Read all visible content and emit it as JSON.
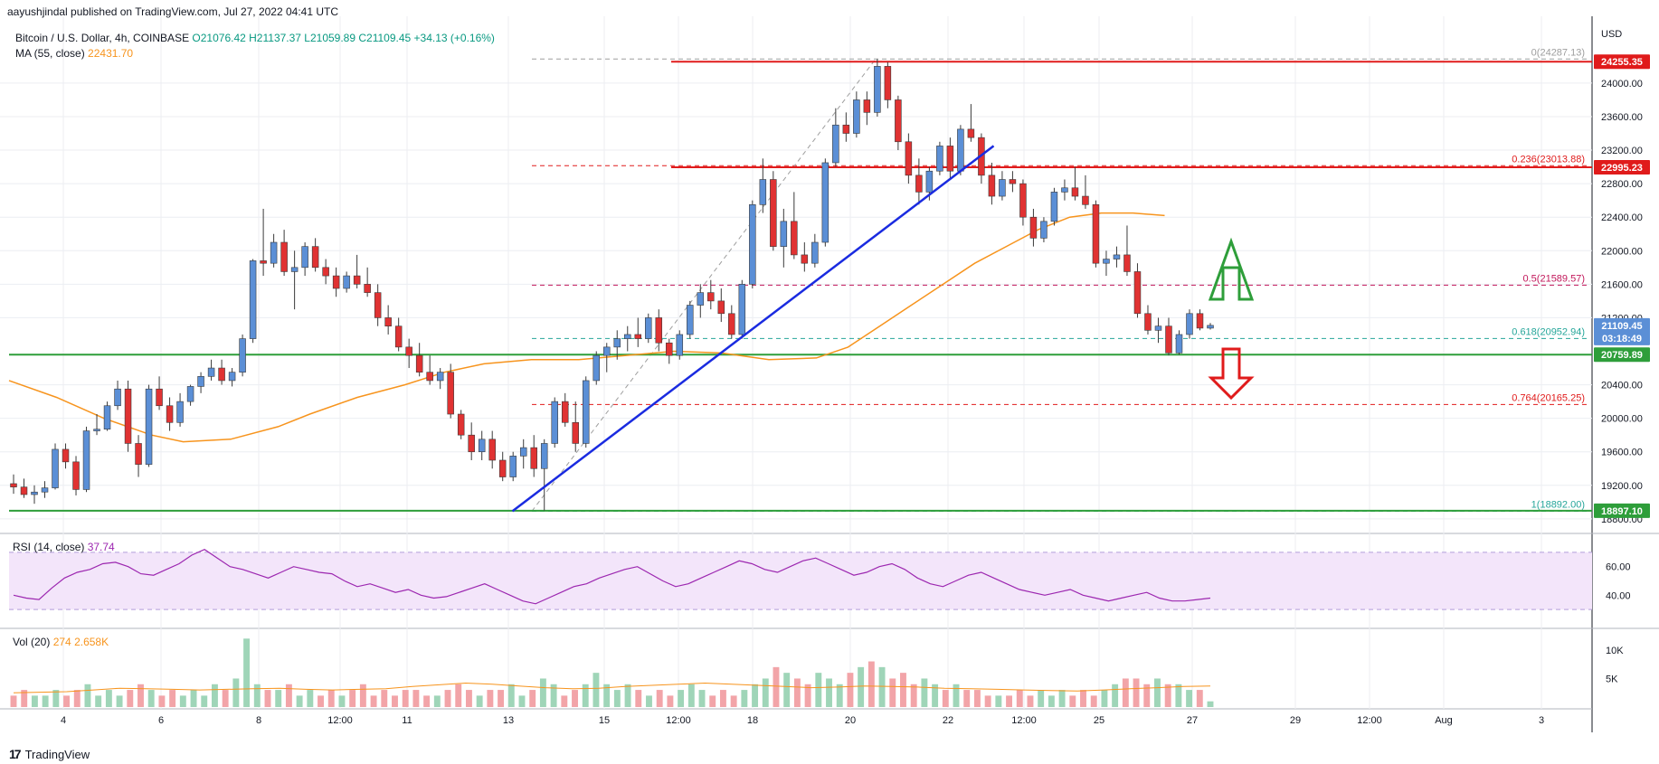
{
  "publisher_line": "aayushjindal published on TradingView.com, Jul 27, 2022 04:41 UTC",
  "symbol_line": "Bitcoin / U.S. Dollar, 4h, COINBASE",
  "ohlc": "O21076.42  H21137.37  L21059.89  C21109.45  +34.13 (+0.16%)",
  "ma_label": "MA (55, close)",
  "ma_value": "22431.70",
  "rsi_label": "RSI (14, close)",
  "rsi_value": "37.74",
  "vol_label": "Vol (20)",
  "vol_value1": "274",
  "vol_value2": "2.658K",
  "currency": "USD",
  "footer_brand": "TradingView",
  "colors": {
    "up": "#5b8fd6",
    "down": "#e03232",
    "ma": "#f7941d",
    "trendline": "#1a2be0",
    "support": "#2e9e3a",
    "resistance": "#e01b1b",
    "fib": "#c2185b",
    "rsi": "#9c27b0",
    "vol_up": "#9fd5b8",
    "vol_down": "#f2a4a8"
  },
  "chart_data": {
    "type": "candlestick",
    "ylim": [
      18680,
      24560
    ],
    "y_ticks": [
      "24000.00",
      "23600.00",
      "23200.00",
      "22800.00",
      "22400.00",
      "22000.00",
      "21600.00",
      "21200.00",
      "20400.00",
      "20000.00",
      "19600.00",
      "19200.00",
      "18800.00"
    ],
    "x_ticks": [
      "4",
      "6",
      "8",
      "12:00",
      "11",
      "13",
      "15",
      "12:00",
      "18",
      "20",
      "22",
      "12:00",
      "25",
      "27",
      "29",
      "12:00",
      "Aug",
      "3"
    ],
    "price_tags": [
      {
        "label": "24255.35",
        "value": 24255.35,
        "color": "#e01b1b"
      },
      {
        "label": "22995.23",
        "value": 22995.23,
        "color": "#e01b1b"
      },
      {
        "label": "21109.45",
        "value": 21109.45,
        "color": "#5b8fd6"
      },
      {
        "label": "03:18:49",
        "value": 20950,
        "color": "#5b8fd6"
      },
      {
        "label": "20759.89",
        "value": 20759.89,
        "color": "#2e9e3a"
      },
      {
        "label": "18897.10",
        "value": 18897.1,
        "color": "#2e9e3a"
      }
    ],
    "fib_levels": [
      {
        "label": "0(24287.13)",
        "value": 24287.13,
        "color": "#9e9e9e"
      },
      {
        "label": "0.236(23013.88)",
        "value": 23013.88,
        "color": "#e01b1b"
      },
      {
        "label": "0.5(21589.57)",
        "value": 21589.57,
        "color": "#c2185b"
      },
      {
        "label": "0.618(20952.94)",
        "value": 20952.94,
        "color": "#26a69a"
      },
      {
        "label": "0.764(20165.25)",
        "value": 20165.25,
        "color": "#e01b1b"
      },
      {
        "label": "1(18892.00)",
        "value": 18892.0,
        "color": "#26a69a"
      }
    ],
    "horizontal_lines": [
      {
        "value": 24255.35,
        "color": "#e01b1b"
      },
      {
        "value": 22995.23,
        "color": "#e01b1b"
      },
      {
        "value": 20759.89,
        "color": "#2e9e3a"
      },
      {
        "value": 18897.1,
        "color": "#2e9e3a"
      }
    ],
    "trendline": {
      "from": [
        0.318,
        18892
      ],
      "to": [
        0.622,
        23250
      ]
    },
    "candles": [
      [
        19220,
        19330,
        19100,
        19180
      ],
      [
        19180,
        19280,
        19050,
        19090
      ],
      [
        19090,
        19200,
        18980,
        19120
      ],
      [
        19120,
        19250,
        19050,
        19170
      ],
      [
        19170,
        19700,
        19150,
        19630
      ],
      [
        19630,
        19700,
        19400,
        19480
      ],
      [
        19480,
        19550,
        19080,
        19150
      ],
      [
        19150,
        19900,
        19120,
        19850
      ],
      [
        19850,
        20050,
        19800,
        19870
      ],
      [
        19870,
        20200,
        19850,
        20150
      ],
      [
        20150,
        20450,
        20100,
        20350
      ],
      [
        20350,
        20450,
        19600,
        19700
      ],
      [
        19700,
        19800,
        19300,
        19450
      ],
      [
        19450,
        20400,
        19420,
        20350
      ],
      [
        20350,
        20500,
        20100,
        20150
      ],
      [
        20150,
        20250,
        19850,
        19950
      ],
      [
        19950,
        20300,
        19900,
        20200
      ],
      [
        20200,
        20400,
        20150,
        20380
      ],
      [
        20380,
        20550,
        20300,
        20500
      ],
      [
        20500,
        20700,
        20450,
        20600
      ],
      [
        20600,
        20700,
        20400,
        20450
      ],
      [
        20450,
        20600,
        20380,
        20550
      ],
      [
        20550,
        21000,
        20500,
        20950
      ],
      [
        20950,
        21900,
        20900,
        21880
      ],
      [
        21880,
        22500,
        21700,
        21850
      ],
      [
        21850,
        22200,
        21800,
        22100
      ],
      [
        22100,
        22250,
        21700,
        21750
      ],
      [
        21750,
        22000,
        21300,
        21800
      ],
      [
        21800,
        22100,
        21700,
        22050
      ],
      [
        22050,
        22150,
        21750,
        21800
      ],
      [
        21800,
        21900,
        21600,
        21700
      ],
      [
        21700,
        21800,
        21450,
        21550
      ],
      [
        21550,
        21750,
        21500,
        21700
      ],
      [
        21700,
        21950,
        21550,
        21600
      ],
      [
        21600,
        21800,
        21450,
        21500
      ],
      [
        21500,
        21600,
        21100,
        21200
      ],
      [
        21200,
        21350,
        21000,
        21100
      ],
      [
        21100,
        21200,
        20800,
        20850
      ],
      [
        20850,
        20950,
        20600,
        20750
      ],
      [
        20750,
        20900,
        20500,
        20550
      ],
      [
        20550,
        20750,
        20400,
        20450
      ],
      [
        20450,
        20600,
        20350,
        20550
      ],
      [
        20550,
        20650,
        20000,
        20050
      ],
      [
        20050,
        20100,
        19750,
        19800
      ],
      [
        19800,
        19950,
        19500,
        19600
      ],
      [
        19600,
        19850,
        19500,
        19750
      ],
      [
        19750,
        19850,
        19400,
        19500
      ],
      [
        19500,
        19600,
        19250,
        19300
      ],
      [
        19300,
        19600,
        19250,
        19550
      ],
      [
        19550,
        19750,
        19400,
        19650
      ],
      [
        19650,
        19800,
        19300,
        19400
      ],
      [
        19400,
        19750,
        18900,
        19700
      ],
      [
        19700,
        20250,
        19650,
        20200
      ],
      [
        20200,
        20300,
        19900,
        19950
      ],
      [
        19950,
        20200,
        19600,
        19700
      ],
      [
        19700,
        20500,
        19650,
        20450
      ],
      [
        20450,
        20800,
        20400,
        20750
      ],
      [
        20750,
        20900,
        20550,
        20850
      ],
      [
        20850,
        21050,
        20700,
        20950
      ],
      [
        20950,
        21100,
        20800,
        21000
      ],
      [
        21000,
        21200,
        20850,
        20950
      ],
      [
        20950,
        21250,
        20900,
        21200
      ],
      [
        21200,
        21300,
        20800,
        20900
      ],
      [
        20900,
        20950,
        20650,
        20750
      ],
      [
        20750,
        21050,
        20700,
        21000
      ],
      [
        21000,
        21400,
        20950,
        21350
      ],
      [
        21350,
        21600,
        21200,
        21500
      ],
      [
        21500,
        21650,
        21300,
        21400
      ],
      [
        21400,
        21550,
        21150,
        21250
      ],
      [
        21250,
        21350,
        20950,
        21000
      ],
      [
        21000,
        21650,
        20950,
        21600
      ],
      [
        21600,
        22600,
        21550,
        22550
      ],
      [
        22550,
        23100,
        22450,
        22850
      ],
      [
        22850,
        22950,
        22000,
        22050
      ],
      [
        22050,
        22500,
        21800,
        22350
      ],
      [
        22350,
        22700,
        21900,
        21950
      ],
      [
        21950,
        22100,
        21750,
        21850
      ],
      [
        21850,
        22200,
        21800,
        22100
      ],
      [
        22100,
        23100,
        22050,
        23050
      ],
      [
        23050,
        23700,
        23000,
        23500
      ],
      [
        23500,
        23650,
        23300,
        23400
      ],
      [
        23400,
        23900,
        23350,
        23800
      ],
      [
        23800,
        23900,
        23500,
        23650
      ],
      [
        23650,
        24287,
        23600,
        24200
      ],
      [
        24200,
        24250,
        23700,
        23800
      ],
      [
        23800,
        23850,
        23200,
        23300
      ],
      [
        23300,
        23400,
        22800,
        22900
      ],
      [
        22900,
        23100,
        22550,
        22700
      ],
      [
        22700,
        23000,
        22600,
        22950
      ],
      [
        22950,
        23300,
        22900,
        23250
      ],
      [
        23250,
        23350,
        22850,
        22950
      ],
      [
        22950,
        23500,
        22900,
        23450
      ],
      [
        23450,
        23750,
        23300,
        23350
      ],
      [
        23350,
        23400,
        22800,
        22900
      ],
      [
        22900,
        23050,
        22550,
        22650
      ],
      [
        22650,
        22950,
        22600,
        22850
      ],
      [
        22850,
        22950,
        22700,
        22800
      ],
      [
        22800,
        22850,
        22300,
        22400
      ],
      [
        22400,
        22500,
        22050,
        22150
      ],
      [
        22150,
        22400,
        22100,
        22350
      ],
      [
        22350,
        22750,
        22300,
        22700
      ],
      [
        22700,
        22850,
        22600,
        22750
      ],
      [
        22750,
        23000,
        22600,
        22650
      ],
      [
        22650,
        22900,
        22500,
        22550
      ],
      [
        22550,
        22600,
        21800,
        21850
      ],
      [
        21850,
        22000,
        21700,
        21900
      ],
      [
        21900,
        22050,
        21800,
        21950
      ],
      [
        21950,
        22300,
        21700,
        21750
      ],
      [
        21750,
        21850,
        21200,
        21250
      ],
      [
        21250,
        21350,
        21000,
        21050
      ],
      [
        21050,
        21200,
        20900,
        21100
      ],
      [
        21100,
        21200,
        20750,
        20780
      ],
      [
        20780,
        21050,
        20759,
        21000
      ],
      [
        21000,
        21300,
        20950,
        21250
      ],
      [
        21250,
        21300,
        21050,
        21076
      ],
      [
        21076,
        21137,
        21059,
        21109
      ]
    ],
    "ma55": [
      [
        0.0,
        20450
      ],
      [
        0.03,
        20250
      ],
      [
        0.06,
        20000
      ],
      [
        0.09,
        19800
      ],
      [
        0.11,
        19720
      ],
      [
        0.14,
        19750
      ],
      [
        0.17,
        19900
      ],
      [
        0.19,
        20050
      ],
      [
        0.22,
        20250
      ],
      [
        0.25,
        20400
      ],
      [
        0.275,
        20550
      ],
      [
        0.3,
        20650
      ],
      [
        0.33,
        20700
      ],
      [
        0.36,
        20700
      ],
      [
        0.39,
        20750
      ],
      [
        0.42,
        20800
      ],
      [
        0.45,
        20780
      ],
      [
        0.48,
        20700
      ],
      [
        0.51,
        20720
      ],
      [
        0.53,
        20850
      ],
      [
        0.55,
        21100
      ],
      [
        0.57,
        21350
      ],
      [
        0.59,
        21600
      ],
      [
        0.61,
        21850
      ],
      [
        0.63,
        22050
      ],
      [
        0.65,
        22250
      ],
      [
        0.67,
        22400
      ],
      [
        0.69,
        22450
      ],
      [
        0.71,
        22450
      ],
      [
        0.73,
        22420
      ]
    ],
    "rsi": {
      "ylim": [
        20,
        80
      ],
      "band": [
        30,
        70
      ],
      "ticks": [
        "60.00",
        "40.00"
      ],
      "values": [
        40,
        38,
        37,
        45,
        52,
        56,
        58,
        62,
        63,
        60,
        55,
        54,
        58,
        62,
        68,
        72,
        66,
        60,
        58,
        55,
        52,
        56,
        60,
        58,
        56,
        55,
        50,
        46,
        48,
        45,
        42,
        44,
        40,
        38,
        39,
        42,
        45,
        48,
        44,
        40,
        36,
        34,
        38,
        42,
        46,
        48,
        52,
        55,
        58,
        60,
        55,
        50,
        46,
        48,
        52,
        56,
        60,
        64,
        62,
        58,
        56,
        60,
        64,
        66,
        62,
        58,
        54,
        56,
        60,
        62,
        58,
        52,
        48,
        46,
        50,
        54,
        56,
        52,
        48,
        44,
        42,
        40,
        42,
        44,
        40,
        38,
        36,
        38,
        40,
        42,
        38,
        36,
        36,
        37,
        38
      ]
    },
    "volume": {
      "ymax": 13000,
      "ticks": [
        "10K",
        "5K"
      ],
      "bars": [
        2,
        3,
        2,
        2,
        3,
        2,
        3,
        4,
        2,
        3,
        2,
        3,
        4,
        3,
        2,
        3,
        2,
        3,
        2,
        4,
        3,
        5,
        12,
        4,
        3,
        3,
        4,
        2,
        3,
        2,
        3,
        2,
        3,
        4,
        2,
        3,
        2,
        3,
        3,
        2,
        2,
        3,
        4,
        3,
        2,
        3,
        3,
        4,
        2,
        3,
        5,
        4,
        2,
        3,
        4,
        6,
        4,
        3,
        4,
        3,
        2,
        3,
        2,
        3,
        4,
        3,
        2,
        3,
        2,
        3,
        4,
        5,
        7,
        6,
        5,
        4,
        6,
        5,
        4,
        6,
        7,
        8,
        7,
        5,
        6,
        4,
        5,
        4,
        3,
        4,
        3,
        3,
        2,
        2,
        2,
        3,
        2,
        3,
        2,
        3,
        2,
        3,
        2,
        3,
        4,
        5,
        5,
        4,
        5,
        4,
        4,
        3,
        3,
        1
      ],
      "ma": [
        2.5,
        2.6,
        2.7,
        3.0,
        3.3,
        3.2,
        3.1,
        3.0,
        3.1,
        3.2,
        3.3,
        3.1,
        3.0,
        3.1,
        3.2,
        3.6,
        3.9,
        4.2,
        4.0,
        3.7,
        3.4,
        3.2,
        3.3,
        3.6,
        3.8,
        4.0,
        4.2,
        4.0,
        3.8,
        3.6,
        3.4,
        3.5,
        3.7,
        3.6,
        3.5,
        3.3,
        3.2,
        3.1,
        3.0,
        2.9,
        2.8,
        3.0,
        3.2,
        3.4,
        3.6,
        3.7
      ]
    }
  }
}
